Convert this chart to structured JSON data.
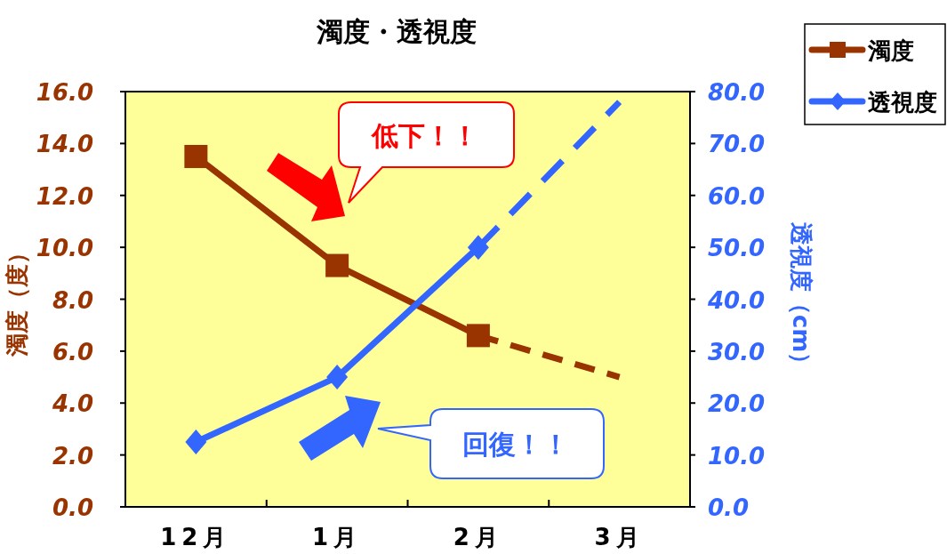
{
  "chart_data": {
    "type": "line",
    "title": "濁度・透視度",
    "ylabel": "濁度（度）",
    "y2label": "透視度（cm）",
    "categories": [
      "12月",
      "1月",
      "2月",
      "3月"
    ],
    "series": [
      {
        "name": "濁度",
        "color": "#993300",
        "values": [
          13.5,
          9.3,
          6.6,
          null
        ],
        "marker": "square",
        "line_style": "solid"
      },
      {
        "name": "透視度",
        "color": "#3366ff",
        "values": [
          12.5,
          25,
          50,
          null
        ],
        "marker": "diamond",
        "line_style": "solid",
        "axis": "y2"
      },
      {
        "color": "#993300",
        "values": [
          null,
          null,
          6.6,
          5.0
        ],
        "marker": "none",
        "line_style": "dashed"
      },
      {
        "color": "#3366ff",
        "values": [
          null,
          null,
          50,
          78
        ],
        "marker": "none",
        "line_style": "dashed",
        "axis": "y2"
      }
    ],
    "ylim": [
      0,
      16
    ],
    "yticks": [
      {
        "value": 0,
        "label": "0.0"
      },
      {
        "value": 2,
        "label": "2.0"
      },
      {
        "value": 4,
        "label": "4.0"
      },
      {
        "value": 6,
        "label": "6.0"
      },
      {
        "value": 8,
        "label": "8.0"
      },
      {
        "value": 10,
        "label": "10.0"
      },
      {
        "value": 12,
        "label": "12.0"
      },
      {
        "value": 14,
        "label": "14.0"
      },
      {
        "value": 16,
        "label": "16.0"
      }
    ],
    "y2lim": [
      0,
      80
    ],
    "y2ticks": [
      {
        "value": 0,
        "label": "0.0"
      },
      {
        "value": 10,
        "label": "10.0"
      },
      {
        "value": 20,
        "label": "20.0"
      },
      {
        "value": 30,
        "label": "30.0"
      },
      {
        "value": 40,
        "label": "40.0"
      },
      {
        "value": 50,
        "label": "50.0"
      },
      {
        "value": 60,
        "label": "60.0"
      },
      {
        "value": 70,
        "label": "70.0"
      },
      {
        "value": 80,
        "label": "80.0"
      }
    ],
    "annotations": [
      "低下！！",
      "回復！！"
    ],
    "grid": false,
    "legend": "top right"
  }
}
